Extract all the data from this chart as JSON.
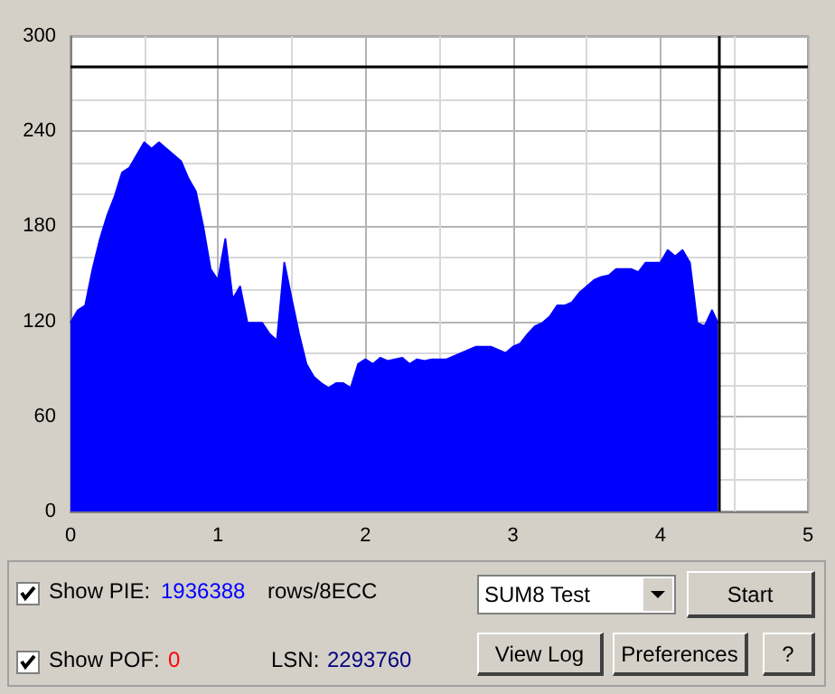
{
  "chart_data": {
    "type": "area",
    "color": "#0000ff",
    "x": [
      0,
      0.05,
      0.1,
      0.15,
      0.2,
      0.25,
      0.3,
      0.35,
      0.4,
      0.45,
      0.5,
      0.55,
      0.6,
      0.65,
      0.7,
      0.75,
      0.8,
      0.85,
      0.9,
      0.95,
      1.0,
      1.05,
      1.1,
      1.15,
      1.2,
      1.25,
      1.3,
      1.35,
      1.4,
      1.45,
      1.5,
      1.55,
      1.6,
      1.65,
      1.7,
      1.75,
      1.8,
      1.85,
      1.9,
      1.95,
      2.0,
      2.05,
      2.1,
      2.15,
      2.2,
      2.25,
      2.3,
      2.35,
      2.4,
      2.45,
      2.5,
      2.55,
      2.6,
      2.65,
      2.7,
      2.75,
      2.8,
      2.85,
      2.9,
      2.95,
      3.0,
      3.05,
      3.1,
      3.15,
      3.2,
      3.25,
      3.3,
      3.35,
      3.4,
      3.45,
      3.5,
      3.55,
      3.6,
      3.65,
      3.7,
      3.75,
      3.8,
      3.85,
      3.9,
      3.95,
      4.0,
      4.05,
      4.1,
      4.15,
      4.2,
      4.25,
      4.3,
      4.35,
      4.39
    ],
    "values": [
      119,
      127,
      130,
      153,
      172,
      187,
      199,
      214,
      217,
      225,
      233,
      229,
      233,
      229,
      225,
      221,
      210,
      202,
      180,
      153,
      146,
      172,
      134,
      142,
      119,
      119,
      119,
      112,
      108,
      157,
      134,
      112,
      93,
      85,
      81,
      78,
      81,
      81,
      78,
      93,
      96,
      93,
      97,
      95,
      96,
      97,
      93,
      96,
      95,
      96,
      96,
      96,
      98,
      100,
      102,
      104,
      104,
      104,
      102,
      100,
      104,
      106,
      112,
      117,
      119,
      123,
      130,
      130,
      132,
      138,
      142,
      146,
      148,
      149,
      153,
      153,
      153,
      151,
      157,
      157,
      157,
      165,
      161,
      165,
      157,
      119,
      117,
      127,
      119
    ],
    "xlim": [
      0,
      5
    ],
    "xticks": [
      0,
      1,
      2,
      3,
      4,
      5
    ],
    "ylim": [
      0,
      300
    ],
    "yticks": [
      0,
      60,
      120,
      180,
      240,
      300
    ],
    "grid": true,
    "marker": "none",
    "ref_lines": [
      {
        "axis": "y",
        "value": 281,
        "color": "#000000"
      },
      {
        "axis": "x",
        "value": 4.4,
        "color": "#000000"
      }
    ],
    "annotations": [
      "Show PIE:",
      "1936388",
      "rows/8ECC",
      "Show POF:",
      "0",
      "LSN:",
      "2293760",
      "SUM8 Test",
      "Start",
      "View Log",
      "Preferences",
      "?"
    ]
  }
}
